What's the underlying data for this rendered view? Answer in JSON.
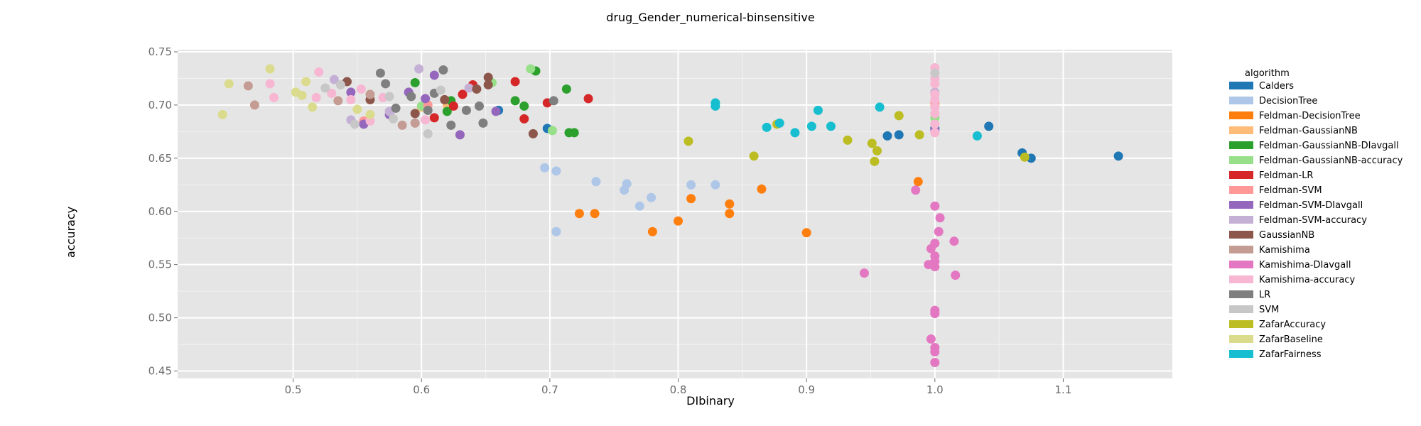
{
  "chart_data": {
    "type": "scatter",
    "title": "drug_Gender_numerical-binsensitive",
    "xlabel": "DIbinary",
    "ylabel": "accuracy",
    "xlim": [
      0.41,
      1.185
    ],
    "ylim": [
      0.443,
      0.752
    ],
    "x_ticks": [
      "0.5",
      "0.6",
      "0.7",
      "0.8",
      "0.9",
      "1.0",
      "1.1"
    ],
    "y_ticks": [
      "0.45",
      "0.50",
      "0.55",
      "0.60",
      "0.65",
      "0.70",
      "0.75"
    ],
    "grid": true,
    "legend_title": "algorithm",
    "legend_position": "right",
    "series": [
      {
        "name": "Calders",
        "color": "#1f77b4",
        "points": [
          [
            0.66,
            0.695
          ],
          [
            0.698,
            0.678
          ],
          [
            0.963,
            0.671
          ],
          [
            0.972,
            0.672
          ],
          [
            1.0,
            0.678
          ],
          [
            1.042,
            0.68
          ],
          [
            1.068,
            0.655
          ],
          [
            1.075,
            0.65
          ],
          [
            1.143,
            0.652
          ]
        ]
      },
      {
        "name": "DecisionTree",
        "color": "#aec7e8",
        "points": [
          [
            0.696,
            0.641
          ],
          [
            0.705,
            0.638
          ],
          [
            0.705,
            0.581
          ],
          [
            0.736,
            0.628
          ],
          [
            0.758,
            0.62
          ],
          [
            0.76,
            0.626
          ],
          [
            0.77,
            0.605
          ],
          [
            0.779,
            0.613
          ],
          [
            0.81,
            0.625
          ],
          [
            0.829,
            0.625
          ]
        ]
      },
      {
        "name": "Feldman-DecisionTree",
        "color": "#ff7f0e",
        "points": [
          [
            0.723,
            0.598
          ],
          [
            0.735,
            0.598
          ],
          [
            0.78,
            0.581
          ],
          [
            0.8,
            0.591
          ],
          [
            0.81,
            0.612
          ],
          [
            0.84,
            0.607
          ],
          [
            0.84,
            0.598
          ],
          [
            0.865,
            0.621
          ],
          [
            0.9,
            0.58
          ],
          [
            0.987,
            0.628
          ]
        ]
      },
      {
        "name": "Feldman-GaussianNB",
        "color": "#ffbb78",
        "points": [
          [
            0.6,
            0.698
          ],
          [
            0.62,
            0.7
          ],
          [
            1.0,
            0.7
          ]
        ]
      },
      {
        "name": "Feldman-GaussianNB-DIavgall",
        "color": "#2ca02c",
        "points": [
          [
            0.595,
            0.721
          ],
          [
            0.62,
            0.694
          ],
          [
            0.623,
            0.704
          ],
          [
            0.673,
            0.704
          ],
          [
            0.68,
            0.699
          ],
          [
            0.689,
            0.732
          ],
          [
            0.713,
            0.715
          ],
          [
            0.715,
            0.674
          ],
          [
            0.719,
            0.674
          ]
        ]
      },
      {
        "name": "Feldman-GaussianNB-accuracy",
        "color": "#98df8a",
        "points": [
          [
            0.6,
            0.699
          ],
          [
            0.655,
            0.721
          ],
          [
            0.685,
            0.734
          ],
          [
            0.702,
            0.676
          ],
          [
            1.0,
            0.688
          ]
        ]
      },
      {
        "name": "Feldman-LR",
        "color": "#d62728",
        "points": [
          [
            0.61,
            0.688
          ],
          [
            0.625,
            0.699
          ],
          [
            0.632,
            0.71
          ],
          [
            0.64,
            0.719
          ],
          [
            0.673,
            0.722
          ],
          [
            0.68,
            0.687
          ],
          [
            0.698,
            0.702
          ],
          [
            0.73,
            0.706
          ]
        ]
      },
      {
        "name": "Feldman-SVM",
        "color": "#ff9896",
        "points": [
          [
            0.555,
            0.685
          ],
          [
            0.605,
            0.7
          ],
          [
            1.0,
            0.702
          ]
        ]
      },
      {
        "name": "Feldman-SVM-DIavgall",
        "color": "#9467bd",
        "points": [
          [
            0.545,
            0.712
          ],
          [
            0.555,
            0.682
          ],
          [
            0.575,
            0.691
          ],
          [
            0.59,
            0.712
          ],
          [
            0.603,
            0.706
          ],
          [
            0.61,
            0.728
          ],
          [
            0.63,
            0.672
          ],
          [
            0.658,
            0.694
          ],
          [
            1.0,
            0.676
          ]
        ]
      },
      {
        "name": "Feldman-SVM-accuracy",
        "color": "#c5b0d5",
        "points": [
          [
            0.532,
            0.724
          ],
          [
            0.545,
            0.686
          ],
          [
            0.575,
            0.694
          ],
          [
            0.598,
            0.734
          ],
          [
            0.637,
            0.716
          ],
          [
            1.0,
            0.712
          ]
        ]
      },
      {
        "name": "GaussianNB",
        "color": "#8c564b",
        "points": [
          [
            0.542,
            0.722
          ],
          [
            0.56,
            0.705
          ],
          [
            0.595,
            0.692
          ],
          [
            0.618,
            0.705
          ],
          [
            0.643,
            0.715
          ],
          [
            0.652,
            0.726
          ],
          [
            0.652,
            0.719
          ],
          [
            0.687,
            0.673
          ]
        ]
      },
      {
        "name": "Kamishima",
        "color": "#c49c94",
        "points": [
          [
            0.465,
            0.718
          ],
          [
            0.47,
            0.7
          ],
          [
            0.535,
            0.704
          ],
          [
            0.56,
            0.71
          ],
          [
            0.585,
            0.681
          ],
          [
            0.595,
            0.683
          ]
        ]
      },
      {
        "name": "Kamishima-DIavgall",
        "color": "#e377c2",
        "points": [
          [
            0.945,
            0.542
          ],
          [
            0.985,
            0.62
          ],
          [
            0.995,
            0.55
          ],
          [
            0.997,
            0.565
          ],
          [
            0.997,
            0.48
          ],
          [
            1.0,
            0.605
          ],
          [
            1.0,
            0.57
          ],
          [
            1.0,
            0.558
          ],
          [
            1.0,
            0.553
          ],
          [
            1.0,
            0.548
          ],
          [
            1.0,
            0.507
          ],
          [
            1.0,
            0.504
          ],
          [
            1.0,
            0.472
          ],
          [
            1.0,
            0.468
          ],
          [
            1.0,
            0.458
          ],
          [
            1.003,
            0.581
          ],
          [
            1.004,
            0.594
          ],
          [
            1.015,
            0.572
          ],
          [
            1.016,
            0.54
          ]
        ]
      },
      {
        "name": "Kamishima-accuracy",
        "color": "#f7b6d2",
        "points": [
          [
            0.482,
            0.72
          ],
          [
            0.485,
            0.707
          ],
          [
            0.518,
            0.707
          ],
          [
            0.52,
            0.731
          ],
          [
            0.53,
            0.711
          ],
          [
            0.545,
            0.705
          ],
          [
            0.553,
            0.715
          ],
          [
            0.56,
            0.685
          ],
          [
            0.57,
            0.707
          ],
          [
            0.603,
            0.686
          ],
          [
            1.0,
            0.735
          ],
          [
            1.0,
            0.725
          ],
          [
            1.0,
            0.72
          ],
          [
            1.0,
            0.71
          ],
          [
            1.0,
            0.705
          ],
          [
            1.0,
            0.698
          ],
          [
            1.0,
            0.692
          ],
          [
            1.0,
            0.682
          ],
          [
            1.0,
            0.674
          ]
        ]
      },
      {
        "name": "LR",
        "color": "#7f7f7f",
        "points": [
          [
            0.568,
            0.73
          ],
          [
            0.572,
            0.72
          ],
          [
            0.58,
            0.697
          ],
          [
            0.592,
            0.708
          ],
          [
            0.605,
            0.695
          ],
          [
            0.61,
            0.711
          ],
          [
            0.617,
            0.733
          ],
          [
            0.623,
            0.681
          ],
          [
            0.635,
            0.695
          ],
          [
            0.645,
            0.699
          ],
          [
            0.648,
            0.683
          ],
          [
            0.703,
            0.704
          ]
        ]
      },
      {
        "name": "SVM",
        "color": "#c7c7c7",
        "points": [
          [
            0.525,
            0.716
          ],
          [
            0.537,
            0.719
          ],
          [
            0.548,
            0.682
          ],
          [
            0.575,
            0.708
          ],
          [
            0.578,
            0.687
          ],
          [
            0.605,
            0.673
          ],
          [
            0.615,
            0.714
          ],
          [
            1.0,
            0.73
          ]
        ]
      },
      {
        "name": "ZafarAccuracy",
        "color": "#bcbd22",
        "points": [
          [
            0.808,
            0.666
          ],
          [
            0.859,
            0.652
          ],
          [
            0.877,
            0.682
          ],
          [
            0.932,
            0.667
          ],
          [
            0.951,
            0.664
          ],
          [
            0.953,
            0.647
          ],
          [
            0.955,
            0.657
          ],
          [
            0.972,
            0.69
          ],
          [
            0.988,
            0.672
          ],
          [
            1.07,
            0.651
          ]
        ]
      },
      {
        "name": "ZafarBaseline",
        "color": "#dbdb8d",
        "points": [
          [
            0.445,
            0.691
          ],
          [
            0.45,
            0.72
          ],
          [
            0.482,
            0.734
          ],
          [
            0.502,
            0.712
          ],
          [
            0.507,
            0.709
          ],
          [
            0.51,
            0.722
          ],
          [
            0.515,
            0.698
          ],
          [
            0.55,
            0.696
          ],
          [
            0.56,
            0.691
          ]
        ]
      },
      {
        "name": "ZafarFairness",
        "color": "#17becf",
        "points": [
          [
            0.829,
            0.702
          ],
          [
            0.829,
            0.699
          ],
          [
            0.869,
            0.679
          ],
          [
            0.879,
            0.683
          ],
          [
            0.891,
            0.674
          ],
          [
            0.904,
            0.68
          ],
          [
            0.909,
            0.695
          ],
          [
            0.919,
            0.68
          ],
          [
            0.957,
            0.698
          ],
          [
            1.033,
            0.671
          ]
        ]
      }
    ]
  }
}
